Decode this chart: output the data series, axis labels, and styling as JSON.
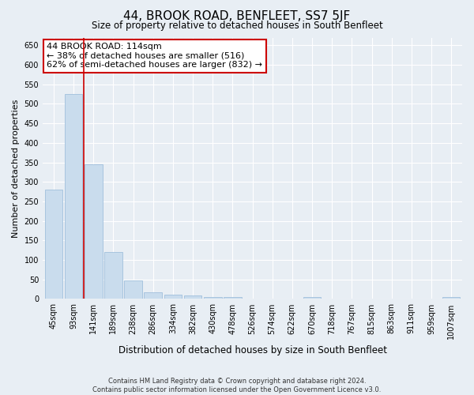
{
  "title": "44, BROOK ROAD, BENFLEET, SS7 5JF",
  "subtitle": "Size of property relative to detached houses in South Benfleet",
  "xlabel": "Distribution of detached houses by size in South Benfleet",
  "ylabel": "Number of detached properties",
  "footer_line1": "Contains HM Land Registry data © Crown copyright and database right 2024.",
  "footer_line2": "Contains public sector information licensed under the Open Government Licence v3.0.",
  "annotation_title": "44 BROOK ROAD: 114sqm",
  "annotation_line1": "← 38% of detached houses are smaller (516)",
  "annotation_line2": "62% of semi-detached houses are larger (832) →",
  "bar_color": "#c9dced",
  "bar_edge_color": "#a0c0dc",
  "vline_color": "#cc0000",
  "annotation_box_color": "#ffffff",
  "annotation_box_edge": "#cc0000",
  "categories": [
    "45sqm",
    "93sqm",
    "141sqm",
    "189sqm",
    "238sqm",
    "286sqm",
    "334sqm",
    "382sqm",
    "430sqm",
    "478sqm",
    "526sqm",
    "574sqm",
    "622sqm",
    "670sqm",
    "718sqm",
    "767sqm",
    "815sqm",
    "863sqm",
    "911sqm",
    "959sqm",
    "1007sqm"
  ],
  "values": [
    280,
    525,
    345,
    120,
    48,
    17,
    11,
    8,
    5,
    5,
    0,
    0,
    0,
    5,
    0,
    0,
    0,
    0,
    0,
    0,
    5
  ],
  "vline_x": 1.5,
  "ylim": [
    0,
    670
  ],
  "yticks": [
    0,
    50,
    100,
    150,
    200,
    250,
    300,
    350,
    400,
    450,
    500,
    550,
    600,
    650
  ],
  "background_color": "#e8eef4",
  "plot_background": "#e8eef4",
  "grid_color": "#ffffff",
  "title_fontsize": 11,
  "subtitle_fontsize": 8.5,
  "ylabel_fontsize": 8,
  "xlabel_fontsize": 8.5,
  "tick_fontsize": 7,
  "footer_fontsize": 6,
  "ann_fontsize": 8
}
